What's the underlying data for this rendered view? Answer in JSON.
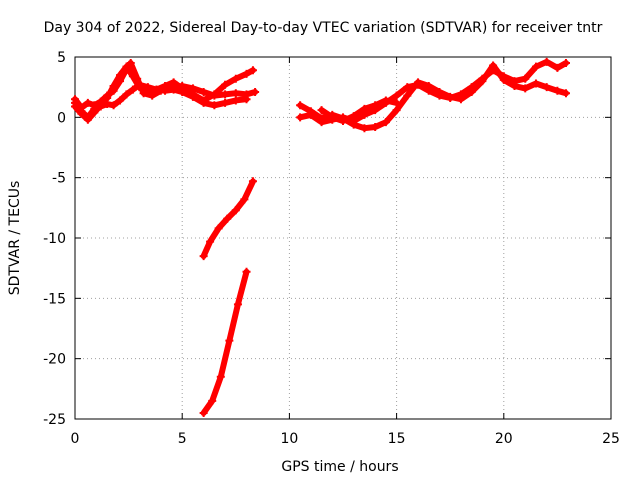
{
  "chart_data": {
    "type": "scatter",
    "title": "Day 304 of 2022, Sidereal Day-to-day VTEC variation (SDTVAR) for receiver tntr",
    "xlabel": "GPS time / hours",
    "ylabel": "SDTVAR / TECUs",
    "xlim": [
      0,
      25
    ],
    "ylim": [
      -25,
      5
    ],
    "xticks": [
      0,
      5,
      10,
      15,
      20,
      25
    ],
    "yticks": [
      5,
      0,
      -5,
      -10,
      -15,
      -20,
      -25
    ],
    "grid": true,
    "color": "#ff0000",
    "series": [
      {
        "x": [
          0.0,
          0.3,
          0.6,
          0.9,
          1.2,
          1.5,
          1.8,
          2.1,
          2.4,
          2.6,
          2.9,
          3.2,
          3.6,
          4.0,
          4.5,
          5.0,
          5.5,
          6.0,
          6.5,
          7.0,
          7.5,
          8.0,
          8.4
        ],
        "y": [
          1.5,
          0.8,
          1.2,
          1.0,
          1.3,
          1.8,
          2.2,
          3.0,
          4.0,
          4.5,
          3.2,
          2.0,
          1.8,
          2.2,
          2.5,
          2.6,
          2.4,
          2.1,
          1.8,
          1.9,
          2.0,
          1.9,
          2.1
        ]
      },
      {
        "x": [
          0.0,
          0.3,
          0.6,
          0.9,
          1.2,
          1.5,
          1.8,
          2.1,
          2.4,
          2.7,
          3.0,
          3.4,
          3.8,
          4.2,
          4.6,
          5.0,
          5.5,
          6.0,
          6.5,
          7.0,
          7.5,
          8.0,
          8.3
        ],
        "y": [
          0.9,
          0.3,
          -0.2,
          0.4,
          1.0,
          1.6,
          2.6,
          3.5,
          4.2,
          3.4,
          2.5,
          2.2,
          2.3,
          2.6,
          2.9,
          2.4,
          1.9,
          1.4,
          1.9,
          2.7,
          3.2,
          3.6,
          3.9
        ]
      },
      {
        "x": [
          0.0,
          0.3,
          0.6,
          0.9,
          1.2,
          1.5,
          1.8,
          2.1,
          2.4,
          2.7,
          3.0,
          3.4,
          3.8,
          4.2,
          4.6,
          5.0,
          5.5,
          6.0,
          6.5,
          7.0,
          7.5,
          8.0
        ],
        "y": [
          1.2,
          0.5,
          0.0,
          0.7,
          0.9,
          1.1,
          1.0,
          1.4,
          1.9,
          2.3,
          2.7,
          2.5,
          2.3,
          2.2,
          2.3,
          2.1,
          1.7,
          1.2,
          1.0,
          1.2,
          1.4,
          1.5
        ]
      },
      {
        "x": [
          6.0,
          6.3,
          6.7,
          7.1,
          7.5,
          7.9,
          8.3
        ],
        "y": [
          -11.5,
          -10.3,
          -9.2,
          -8.4,
          -7.7,
          -6.8,
          -5.3
        ]
      },
      {
        "x": [
          6.0,
          6.4,
          6.8,
          7.2,
          7.6,
          8.0
        ],
        "y": [
          -24.5,
          -23.5,
          -21.5,
          -18.5,
          -15.5,
          -12.8
        ]
      },
      {
        "x": [
          10.5,
          11.0,
          11.5,
          12.0,
          12.5,
          13.0,
          13.5,
          14.0,
          14.5,
          15.0,
          15.5,
          16.0,
          16.5,
          17.0,
          17.5,
          18.0,
          18.5,
          19.0,
          19.5,
          20.0,
          20.5,
          21.0,
          21.5,
          22.0,
          22.5,
          22.9
        ],
        "y": [
          0.0,
          0.2,
          -0.4,
          -0.2,
          0.0,
          -0.3,
          0.2,
          0.6,
          1.2,
          1.8,
          2.5,
          2.7,
          2.2,
          1.8,
          1.6,
          1.9,
          2.5,
          3.2,
          3.9,
          3.4,
          3.0,
          3.2,
          4.2,
          4.6,
          4.1,
          4.5
        ]
      },
      {
        "x": [
          10.5,
          11.0,
          11.5,
          12.0,
          12.5,
          13.0,
          13.5,
          14.0,
          14.5,
          15.0,
          15.5,
          16.0,
          16.5,
          17.0,
          17.5,
          18.0,
          18.5,
          19.0,
          19.5,
          20.0,
          20.5,
          21.0,
          21.5,
          22.0,
          22.5,
          22.9
        ],
        "y": [
          1.0,
          0.5,
          -0.1,
          0.2,
          -0.1,
          -0.6,
          -0.9,
          -0.8,
          -0.4,
          0.6,
          1.8,
          2.9,
          2.6,
          2.1,
          1.7,
          1.5,
          2.1,
          3.0,
          4.3,
          3.1,
          2.6,
          2.4,
          2.8,
          2.5,
          2.2,
          2.0
        ]
      },
      {
        "x": [
          11.5,
          12.0,
          12.5,
          13.0,
          13.5,
          14.0,
          14.5,
          15.0
        ],
        "y": [
          0.6,
          0.0,
          -0.3,
          0.1,
          0.7,
          1.0,
          1.4,
          1.2
        ]
      }
    ]
  }
}
